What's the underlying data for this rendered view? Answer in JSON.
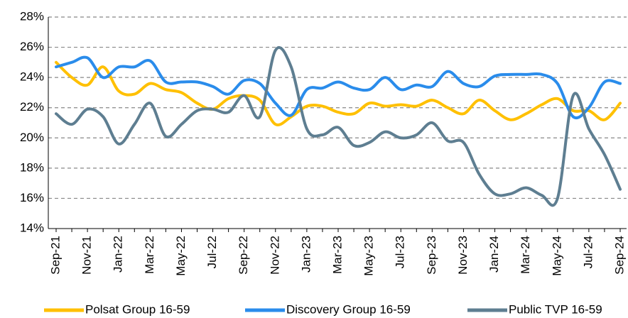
{
  "chart_data": {
    "type": "line",
    "categories": [
      "Sep-21",
      null,
      "Nov-21",
      null,
      "Jan-22",
      null,
      "Mar-22",
      null,
      "May-22",
      null,
      "Jul-22",
      null,
      "Sep-22",
      null,
      "Nov-22",
      null,
      "Jan-23",
      null,
      "Mar-23",
      null,
      "May-23",
      null,
      "Jul-23",
      null,
      "Sep-23",
      null,
      "Nov-23",
      null,
      "Jan-24",
      null,
      "Mar-24",
      null,
      "May-24",
      null,
      "Jul-24",
      null,
      "Sep-24"
    ],
    "series": [
      {
        "name": "Polsat Group 16-59",
        "color": "#FFC000",
        "values": [
          25.0,
          24.0,
          23.5,
          24.7,
          23.1,
          22.9,
          23.6,
          23.2,
          23.0,
          22.3,
          21.9,
          22.6,
          22.8,
          22.5,
          20.9,
          21.4,
          22.1,
          22.1,
          21.7,
          21.6,
          22.3,
          22.1,
          22.2,
          22.1,
          22.5,
          22.0,
          21.6,
          22.5,
          21.8,
          21.2,
          21.6,
          22.2,
          22.6,
          21.8,
          21.8,
          21.2,
          22.3
        ]
      },
      {
        "name": "Discovery Group 16-59",
        "color": "#2A8CEB",
        "values": [
          24.7,
          25.0,
          25.3,
          24.0,
          24.7,
          24.7,
          25.1,
          23.7,
          23.7,
          23.7,
          23.4,
          22.9,
          23.8,
          23.6,
          22.3,
          21.5,
          23.2,
          23.3,
          23.7,
          23.3,
          23.2,
          24.0,
          23.2,
          23.5,
          23.4,
          24.4,
          23.6,
          23.4,
          24.1,
          24.2,
          24.2,
          24.2,
          23.6,
          21.4,
          22.0,
          23.7,
          23.6
        ]
      },
      {
        "name": "Public TVP 16-59",
        "color": "#5E7E91",
        "values": [
          21.6,
          20.9,
          21.9,
          21.4,
          19.6,
          20.9,
          22.3,
          20.1,
          20.9,
          21.8,
          21.9,
          21.7,
          22.8,
          21.4,
          25.8,
          24.7,
          20.6,
          20.2,
          20.7,
          19.5,
          19.7,
          20.4,
          20.0,
          20.2,
          21.0,
          19.8,
          19.7,
          17.6,
          16.3,
          16.3,
          16.7,
          16.2,
          16.0,
          22.8,
          20.6,
          18.9,
          16.6
        ]
      }
    ],
    "ylim": [
      14,
      28
    ],
    "yticks": [
      {
        "value": 14,
        "label": "14%"
      },
      {
        "value": 16,
        "label": "16%"
      },
      {
        "value": 18,
        "label": "18%"
      },
      {
        "value": 20,
        "label": "20%"
      },
      {
        "value": 22,
        "label": "22%"
      },
      {
        "value": 24,
        "label": "24%"
      },
      {
        "value": 26,
        "label": "26%"
      },
      {
        "value": 28,
        "label": "28%"
      }
    ],
    "grid": true,
    "legend": "bottom"
  }
}
